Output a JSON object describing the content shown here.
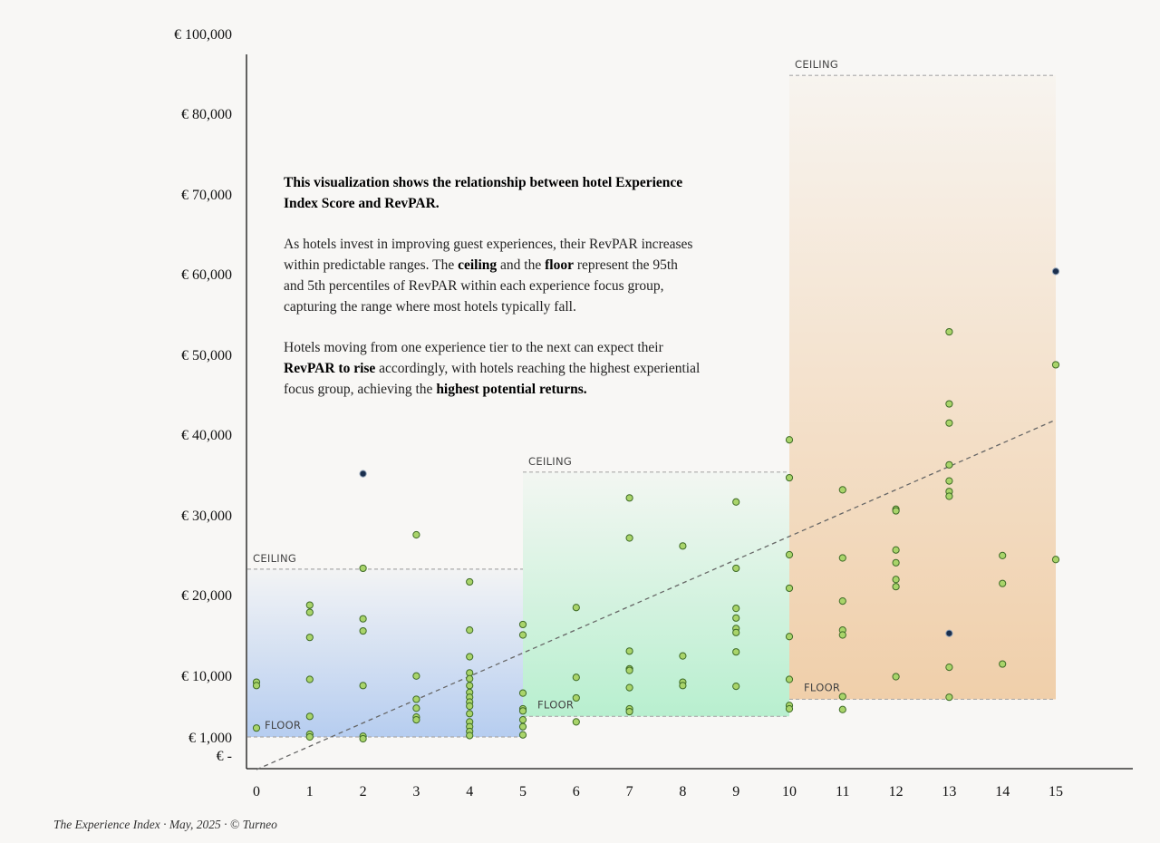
{
  "chart_data": {
    "type": "scatter",
    "title": "",
    "xlabel": "",
    "ylabel": "",
    "x_ticks": [
      "0",
      "1",
      "2",
      "3",
      "4",
      "5",
      "6",
      "7",
      "8",
      "9",
      "10",
      "11",
      "12",
      "13",
      "14",
      "15"
    ],
    "xlim": [
      0,
      15
    ],
    "y_ticks": [
      {
        "value": 0,
        "label": "€ -"
      },
      {
        "value": 1000,
        "label": "€ 1,000"
      },
      {
        "value": 10000,
        "label": "€ 10,000"
      },
      {
        "value": 20000,
        "label": "€ 20,000"
      },
      {
        "value": 30000,
        "label": "€ 30,000"
      },
      {
        "value": 40000,
        "label": "€ 40,000"
      },
      {
        "value": 50000,
        "label": "€ 50,000"
      },
      {
        "value": 60000,
        "label": "€ 60,000"
      },
      {
        "value": 70000,
        "label": "€ 70,000"
      },
      {
        "value": 80000,
        "label": "€ 80,000"
      },
      {
        "value": 100000,
        "label": "€ 100,000"
      }
    ],
    "bands": [
      {
        "x_start": 0,
        "x_end": 5,
        "floor": 1000,
        "ceiling": 23200,
        "color": "#b6cdf0",
        "floor_label": "FLOOR",
        "ceiling_label": "CEILING"
      },
      {
        "x_start": 5,
        "x_end": 10,
        "floor": 4000,
        "ceiling": 35300,
        "color": "#b8efcf",
        "floor_label": "FLOOR",
        "ceiling_label": "CEILING"
      },
      {
        "x_start": 10,
        "x_end": 15,
        "floor": 6500,
        "ceiling": 89500,
        "color": "#f0cfaa",
        "floor_label": "FLOOR",
        "ceiling_label": "CEILING"
      }
    ],
    "trendline": {
      "x": [
        0,
        15
      ],
      "y": [
        -800,
        41800
      ]
    },
    "series": [
      {
        "marker": "green",
        "points": [
          [
            0,
            9000
          ],
          [
            0,
            8500
          ],
          [
            0,
            2300
          ],
          [
            1,
            18700
          ],
          [
            1,
            17800
          ],
          [
            1,
            14700
          ],
          [
            1,
            9400
          ],
          [
            1,
            4000
          ],
          [
            1,
            1400
          ],
          [
            1,
            1000
          ],
          [
            2,
            23300
          ],
          [
            2,
            17000
          ],
          [
            2,
            15500
          ],
          [
            2,
            8500
          ],
          [
            2,
            1100
          ],
          [
            2,
            900
          ],
          [
            3,
            27500
          ],
          [
            3,
            9900
          ],
          [
            3,
            6500
          ],
          [
            3,
            5200
          ],
          [
            3,
            3900
          ],
          [
            3,
            3500
          ],
          [
            4,
            21600
          ],
          [
            4,
            15600
          ],
          [
            4,
            12300
          ],
          [
            4,
            10300
          ],
          [
            4,
            9500
          ],
          [
            4,
            8500
          ],
          [
            4,
            7500
          ],
          [
            4,
            6800
          ],
          [
            4,
            6100
          ],
          [
            4,
            5500
          ],
          [
            4,
            4400
          ],
          [
            4,
            3200
          ],
          [
            4,
            2500
          ],
          [
            4,
            1800
          ],
          [
            4,
            1200
          ],
          [
            5,
            16300
          ],
          [
            5,
            15000
          ],
          [
            5,
            7400
          ],
          [
            5,
            5100
          ],
          [
            5,
            4800
          ],
          [
            5,
            3500
          ],
          [
            5,
            2500
          ],
          [
            5,
            1300
          ],
          [
            6,
            18400
          ],
          [
            6,
            9700
          ],
          [
            6,
            6700
          ],
          [
            6,
            3200
          ],
          [
            7,
            32100
          ],
          [
            7,
            27100
          ],
          [
            7,
            13000
          ],
          [
            7,
            10800
          ],
          [
            7,
            10600
          ],
          [
            7,
            8200
          ],
          [
            7,
            5100
          ],
          [
            7,
            4700
          ],
          [
            8,
            26100
          ],
          [
            8,
            12400
          ],
          [
            8,
            9000
          ],
          [
            8,
            8500
          ],
          [
            9,
            31600
          ],
          [
            9,
            23300
          ],
          [
            9,
            18300
          ],
          [
            9,
            17100
          ],
          [
            9,
            15800
          ],
          [
            9,
            15300
          ],
          [
            9,
            12900
          ],
          [
            9,
            8400
          ],
          [
            10,
            39300
          ],
          [
            10,
            34600
          ],
          [
            10,
            25000
          ],
          [
            10,
            20800
          ],
          [
            10,
            14800
          ],
          [
            10,
            9400
          ],
          [
            10,
            5600
          ],
          [
            10,
            5100
          ],
          [
            11,
            33100
          ],
          [
            11,
            24600
          ],
          [
            11,
            19200
          ],
          [
            11,
            15600
          ],
          [
            11,
            15000
          ],
          [
            11,
            6900
          ],
          [
            11,
            5000
          ],
          [
            12,
            30700
          ],
          [
            12,
            30500
          ],
          [
            12,
            25600
          ],
          [
            12,
            24000
          ],
          [
            12,
            21900
          ],
          [
            12,
            21000
          ],
          [
            12,
            9800
          ],
          [
            13,
            52800
          ],
          [
            13,
            43800
          ],
          [
            13,
            41400
          ],
          [
            13,
            36200
          ],
          [
            13,
            34200
          ],
          [
            13,
            32900
          ],
          [
            13,
            32300
          ],
          [
            13,
            11000
          ],
          [
            13,
            6800
          ],
          [
            14,
            24900
          ],
          [
            14,
            21400
          ],
          [
            14,
            11400
          ],
          [
            15,
            48700
          ],
          [
            15,
            24400
          ]
        ]
      },
      {
        "marker": "navy",
        "points": [
          [
            2,
            35100
          ],
          [
            13,
            15200
          ],
          [
            15,
            60300
          ]
        ]
      }
    ],
    "colors": {
      "green_point": "#a9d46a",
      "navy_point": "#1a2f4e",
      "axis": "#111111"
    }
  },
  "description": {
    "p1_bold": "This visualization shows the relationship between hotel Experience Index Score and RevPAR.",
    "p2_a": "As hotels invest in improving guest experiences, their RevPAR increases within predictable ranges. The ",
    "p2_b": "ceiling",
    "p2_c": " and the ",
    "p2_d": "floor",
    "p2_e": " represent the 95th and 5th percentiles of RevPAR within each experience focus group, capturing the range where most hotels typically fall.",
    "p3_a": "Hotels moving from one experience tier to the next can expect their ",
    "p3_b": "RevPAR to rise",
    "p3_c": " accordingly, with hotels reaching the highest experiential focus group, achieving the ",
    "p3_d": "highest potential returns."
  },
  "footer": "The Experience Index · May, 2025 · © Turneo"
}
